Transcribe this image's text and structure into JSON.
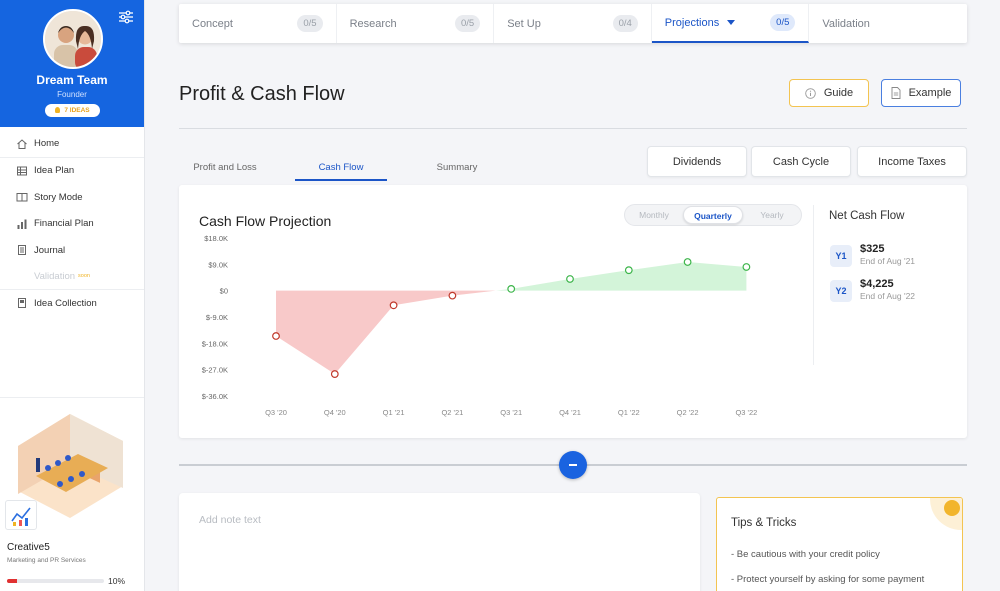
{
  "sidebar": {
    "team_name": "Dream Team",
    "role": "Founder",
    "ideas_badge": "7 IDEAS",
    "nav": [
      {
        "label": "Home",
        "icon": "home-icon"
      },
      {
        "label": "Idea Plan",
        "icon": "table-icon"
      },
      {
        "label": "Story Mode",
        "icon": "book-icon"
      },
      {
        "label": "Financial Plan",
        "icon": "bar-chart-icon"
      },
      {
        "label": "Journal",
        "icon": "journal-icon"
      },
      {
        "label": "Validation",
        "icon": "",
        "soon": "soon"
      },
      {
        "label": "Idea Collection",
        "icon": "collection-icon"
      }
    ],
    "company": "Creative5",
    "company_desc": "Marketing and PR Services",
    "progress_pct": 10,
    "progress_label": "10%"
  },
  "steps": [
    {
      "label": "Concept",
      "count": "0/5"
    },
    {
      "label": "Research",
      "count": "0/5"
    },
    {
      "label": "Set Up",
      "count": "0/4"
    },
    {
      "label": "Projections",
      "count": "0/5"
    },
    {
      "label": "Validation",
      "count": ""
    }
  ],
  "page": {
    "title": "Profit & Cash Flow",
    "guide_label": "Guide",
    "example_label": "Example"
  },
  "subtabs": [
    "Profit and Loss",
    "Cash Flow",
    "Summary"
  ],
  "action_buttons": [
    "Dividends",
    "Cash Cycle",
    "Income Taxes"
  ],
  "chart_title": "Cash Flow Projection",
  "periods": [
    "Monthly",
    "Quarterly",
    "Yearly"
  ],
  "chart_data": {
    "type": "area",
    "title": "Cash Flow Projection",
    "categories": [
      "Q3 '20",
      "Q4 '20",
      "Q1 '21",
      "Q2 '21",
      "Q3 '21",
      "Q4 '21",
      "Q1 '22",
      "Q2 '22",
      "Q3 '22"
    ],
    "values": [
      -15500,
      -28500,
      -5000,
      -1700,
      600,
      4000,
      7000,
      9800,
      8100
    ],
    "y_ticks": [
      "$18.0K",
      "$9.0K",
      "$0",
      "$-9.0K",
      "$-18.0K",
      "$-27.0K",
      "$-36.0K"
    ],
    "ylim": [
      -36000,
      18000
    ],
    "colors": {
      "negative_fill": "#f8c9c9",
      "negative_point": "#c0392b",
      "positive_fill": "#d3f4d9",
      "positive_point": "#3cb54a"
    }
  },
  "net_cash_flow": {
    "title": "Net Cash Flow",
    "items": [
      {
        "tag": "Y1",
        "value": "$325",
        "sub": "End of Aug '21"
      },
      {
        "tag": "Y2",
        "value": "$4,225",
        "sub": "End of Aug '22"
      }
    ]
  },
  "note_placeholder": "Add note text",
  "tips": {
    "title": "Tips & Tricks",
    "items": [
      "-   Be cautious with your credit policy",
      "-   Protect yourself by asking for some payment"
    ]
  },
  "colors": {
    "brand": "#1565e0",
    "accent": "#1b55c7",
    "guide_border": "#f3c451"
  }
}
